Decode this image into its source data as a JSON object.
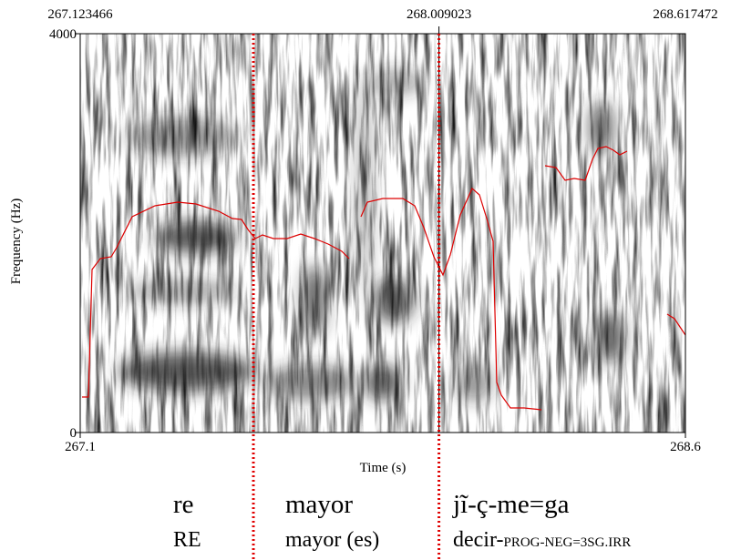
{
  "chart_data": {
    "type": "spectrogram",
    "xlabel": "Time (s)",
    "ylabel": "Frequency (Hz)",
    "xlim": [
      267.123466,
      268.617472
    ],
    "ylim": [
      0,
      4000
    ],
    "xticks": [
      {
        "value": 267.123466,
        "label": "267.1"
      },
      {
        "value": 268.617472,
        "label": "268.6"
      }
    ],
    "yticks": [
      0,
      4000
    ],
    "cursor": 268.009023,
    "boundaries": [
      267.551,
      268.009023
    ],
    "boundary_color": "#e00000",
    "gloss": {
      "words": [
        "re",
        "mayor",
        "jĩ-ç-me=ga"
      ],
      "glosses": [
        [
          "RE"
        ],
        [
          "mayor (es)"
        ],
        [
          "decir-",
          "PROG-NEG=3SG.IRR"
        ]
      ]
    }
  }
}
